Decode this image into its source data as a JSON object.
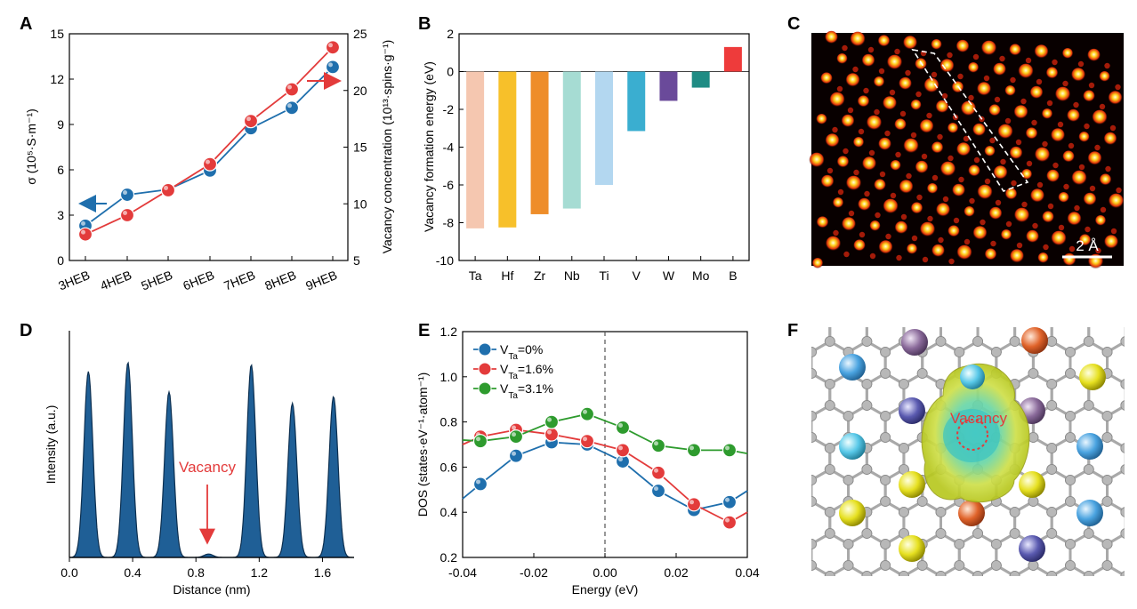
{
  "panels": {
    "A": "A",
    "B": "B",
    "C": "C",
    "D": "D",
    "E": "E",
    "F": "F"
  },
  "colors": {
    "blue": "#1f6fad",
    "red": "#e33b3b",
    "green": "#2e9b2e",
    "axis_blue": "#3a86c0",
    "axis_red": "#e0393e"
  },
  "chart_data": [
    {
      "id": "A",
      "type": "line",
      "categories": [
        "3HEB",
        "4HEB",
        "5HEB",
        "6HEB",
        "7HEB",
        "8HEB",
        "9HEB"
      ],
      "series": [
        {
          "name": "σ",
          "axis": "left",
          "color": "#1f6fad",
          "values": [
            2.3,
            4.35,
            4.7,
            5.95,
            8.75,
            10.1,
            12.8
          ]
        },
        {
          "name": "Vacancy concentration",
          "axis": "right",
          "color": "#e33b3b",
          "values": [
            7.3,
            9.0,
            11.2,
            13.5,
            17.3,
            20.1,
            23.8
          ]
        }
      ],
      "ylabel_left": "σ (10⁵·S·m⁻¹)",
      "ylabel_right": "Vacancy concentration (10¹³·spins·g⁻¹)",
      "ylim_left": [
        0,
        15
      ],
      "ylim_right": [
        5,
        25
      ],
      "yticks_left": [
        "0",
        "3",
        "6",
        "9",
        "12",
        "15"
      ],
      "yticks_right": [
        "5",
        "10",
        "15",
        "20",
        "25"
      ]
    },
    {
      "id": "B",
      "type": "bar",
      "categories": [
        "Ta",
        "Hf",
        "Zr",
        "Nb",
        "Ti",
        "V",
        "W",
        "Mo",
        "B"
      ],
      "values": [
        -8.3,
        -8.25,
        -7.55,
        -7.25,
        -6.0,
        -3.15,
        -1.55,
        -0.85,
        1.3
      ],
      "colors": [
        "#f5c7b0",
        "#f7c02a",
        "#ee8d2a",
        "#a6dcd3",
        "#b3d7f0",
        "#3aaed0",
        "#6a4a9a",
        "#1f8c84",
        "#ee3b3b"
      ],
      "ylabel": "Vacancy formation energy (eV)",
      "ylim": [
        -10,
        2
      ],
      "yticks": [
        "-10",
        "-8",
        "-6",
        "-4",
        "-2",
        "0",
        "2"
      ]
    },
    {
      "id": "D",
      "type": "area",
      "x_peaks": [
        0.12,
        0.37,
        0.63,
        0.88,
        1.15,
        1.41,
        1.67
      ],
      "peak_heights": [
        0.82,
        0.86,
        0.73,
        0.015,
        0.85,
        0.68,
        0.71
      ],
      "peak_width": 0.04,
      "xlabel": "Distance (nm)",
      "ylabel": "Intensity (a.u.)",
      "xlim": [
        0,
        1.8
      ],
      "xticks": [
        "0.0",
        "0.4",
        "0.8",
        "1.2",
        "1.6"
      ],
      "annotation": "Vacancy"
    },
    {
      "id": "E",
      "type": "line",
      "x": [
        -0.035,
        -0.025,
        -0.015,
        -0.005,
        0.005,
        0.015,
        0.025,
        0.035
      ],
      "series": [
        {
          "name": "V_Ta=0%",
          "label_main": "V",
          "label_sub": "Ta",
          "label_tail": "=0%",
          "color": "#1f6fad",
          "values": [
            0.525,
            0.65,
            0.71,
            0.7,
            0.625,
            0.495,
            0.41,
            0.445
          ],
          "ends": [
            0.46,
            0.495
          ]
        },
        {
          "name": "V_Ta=1.6%",
          "label_main": "V",
          "label_sub": "Ta",
          "label_tail": "=1.6%",
          "color": "#e33b3b",
          "values": [
            0.735,
            0.765,
            0.745,
            0.715,
            0.675,
            0.575,
            0.435,
            0.355
          ],
          "ends": [
            0.7,
            0.4
          ]
        },
        {
          "name": "V_Ta=3.1%",
          "label_main": "V",
          "label_sub": "Ta",
          "label_tail": "=3.1%",
          "color": "#2e9b2e",
          "values": [
            0.715,
            0.735,
            0.8,
            0.835,
            0.775,
            0.695,
            0.675,
            0.675
          ],
          "ends": [
            0.72,
            0.66
          ]
        }
      ],
      "xlabel": "Energy (eV)",
      "ylabel": "DOS (states·eV⁻¹·atom⁻¹)",
      "xlim": [
        -0.04,
        0.04
      ],
      "ylim": [
        0.2,
        1.2
      ],
      "xticks": [
        "-0.04",
        "-0.02",
        "0.00",
        "0.02",
        "0.04"
      ],
      "yticks": [
        "0.2",
        "0.4",
        "0.6",
        "0.8",
        "1.0",
        "1.2"
      ]
    }
  ],
  "panel_C": {
    "scale_bar_label": "2 Å"
  },
  "panel_F": {
    "annotation": "Vacancy"
  }
}
